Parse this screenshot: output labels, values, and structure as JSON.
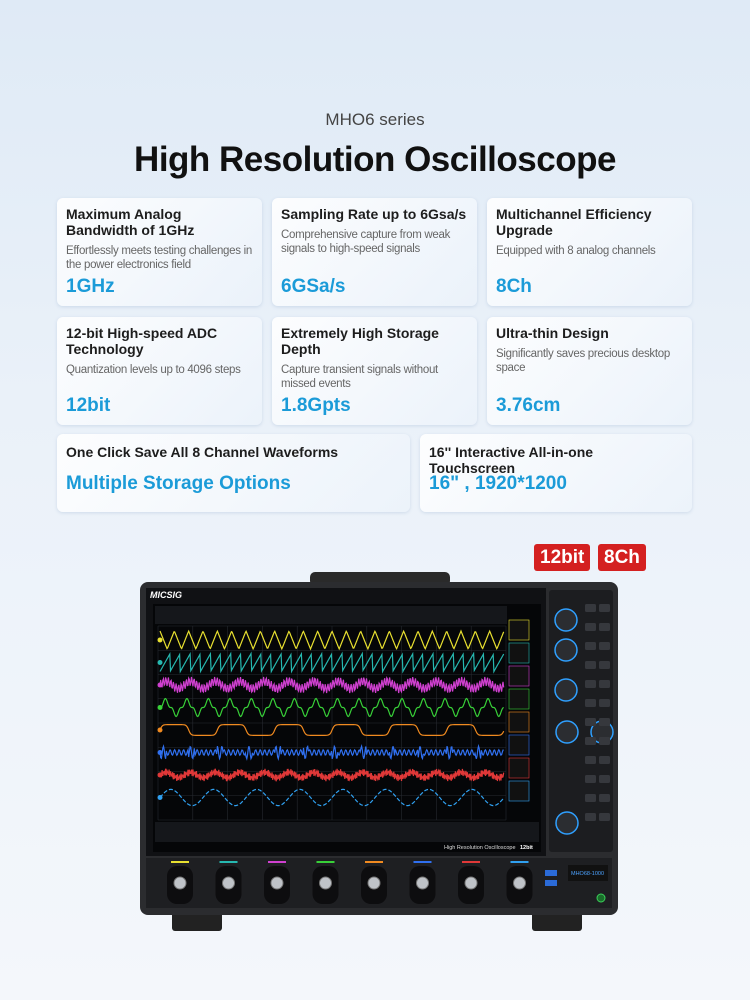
{
  "header": {
    "subtitle": "MHO6 series",
    "title": "High Resolution Oscilloscope"
  },
  "features": [
    {
      "title": "Maximum Analog Bandwidth of 1GHz",
      "description": "Effortlessly meets testing challenges in the power electronics field",
      "value": "1GHz"
    },
    {
      "title": "Sampling Rate up to 6Gsa/s",
      "description": "Comprehensive capture from weak signals to high-speed signals",
      "value": "6GSa/s"
    },
    {
      "title": "Multichannel Efficiency Upgrade",
      "description": "Equipped with 8 analog channels",
      "value": "8Ch"
    },
    {
      "title": "12-bit High-speed ADC Technology",
      "description": "Quantization levels up to 4096 steps",
      "value": "12bit"
    },
    {
      "title": "Extremely High Storage Depth",
      "description": "Capture transient signals without missed events",
      "value": "1.8Gpts"
    },
    {
      "title": "Ultra-thin Design",
      "description": "Significantly saves precious desktop space",
      "value": "3.76cm"
    }
  ],
  "wide_features": [
    {
      "title": "One Click Save All 8 Channel Waveforms",
      "value": "Multiple Storage Options"
    },
    {
      "title": "16'' Interactive All-in-one Touchscreen",
      "value": "16\" , 1920*1200"
    }
  ],
  "badges": [
    "12bit",
    "8Ch"
  ],
  "device": {
    "brand": "MICSIG",
    "screen_caption": "High Resolution Oscilloscope",
    "screen_badge": "12bit",
    "model": "MHO68-1000"
  }
}
